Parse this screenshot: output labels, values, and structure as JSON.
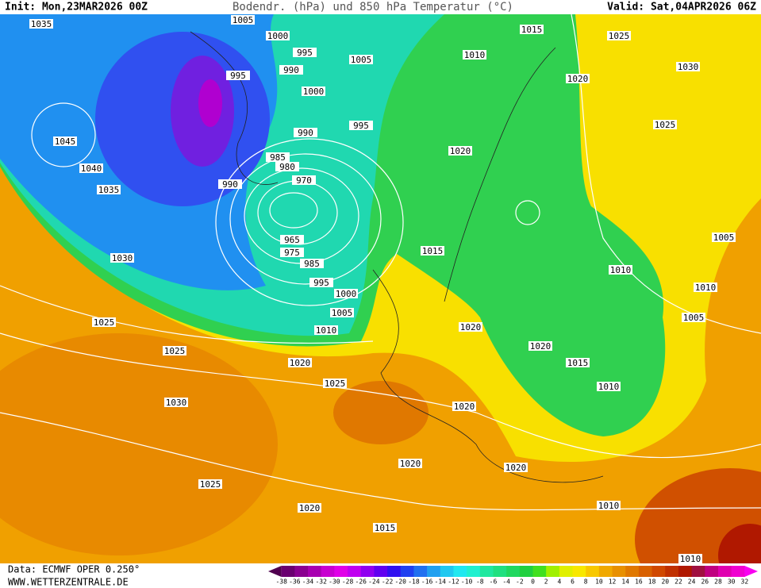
{
  "header": {
    "init": "Init: Mon,23MAR2026 00Z",
    "title": "Bodendr. (hPa) und 850 hPa Temperatur (°C)",
    "valid": "Valid: Sat,04APR2026 06Z"
  },
  "map": {
    "isobar_labels": [
      "1035",
      "1045",
      "1040",
      "1035",
      "1030",
      "1025",
      "1025",
      "1020",
      "1030",
      "1025",
      "1020",
      "1005",
      "1000",
      "995",
      "995",
      "990",
      "1000",
      "990",
      "985",
      "980",
      "990",
      "970",
      "965",
      "975",
      "985",
      "995",
      "1000",
      "1005",
      "1010",
      "995",
      "1005",
      "1015",
      "1010",
      "1020",
      "1025",
      "1020",
      "1015",
      "1025",
      "1030",
      "1025",
      "1020",
      "1005",
      "1010",
      "1010",
      "1005",
      "1020",
      "1015",
      "1010",
      "1020",
      "1020",
      "1020",
      "1015",
      "1010",
      "1010"
    ]
  },
  "legend": {
    "colors": [
      "#50004f",
      "#6a0070",
      "#8a0090",
      "#a800b0",
      "#c800d0",
      "#e000e8",
      "#c000f0",
      "#9000f0",
      "#6000f0",
      "#3010f0",
      "#2040f0",
      "#2070f0",
      "#20a0f0",
      "#20c8f0",
      "#20e8f0",
      "#20f0d0",
      "#20e8a0",
      "#20e080",
      "#20d860",
      "#20d040",
      "#40e020",
      "#a0f000",
      "#e0f000",
      "#f8e800",
      "#f8c800",
      "#f0a800",
      "#e89000",
      "#e07800",
      "#d86000",
      "#d04800",
      "#c03000",
      "#b01800",
      "#a01040",
      "#c00080",
      "#e000b0",
      "#f000d0",
      "#f800f0"
    ],
    "labels": [
      -38,
      -36,
      -34,
      -32,
      -30,
      -28,
      -26,
      -24,
      -22,
      -20,
      -18,
      -16,
      -14,
      -12,
      -10,
      -8,
      -6,
      -4,
      -2,
      0,
      2,
      4,
      6,
      8,
      10,
      12,
      14,
      16,
      18,
      20,
      22,
      24,
      26,
      28,
      30,
      32
    ]
  },
  "footer": {
    "source": "Data: ECMWF OPER 0.250°",
    "website": "WWW.WETTERZENTRALE.DE"
  }
}
